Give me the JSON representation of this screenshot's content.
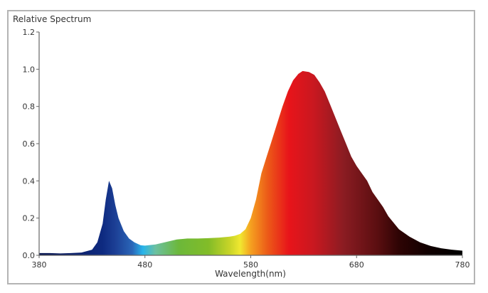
{
  "chart_data": {
    "type": "area",
    "title": "Relative Spectrum",
    "xlabel": "Wavelength(nm)",
    "ylabel": "Relative Spectrum",
    "xlim": [
      380,
      780
    ],
    "ylim": [
      0,
      1.2
    ],
    "xticks": [
      380,
      480,
      580,
      680,
      780
    ],
    "yticks": [
      "0.0",
      "0.2",
      "0.4",
      "0.6",
      "0.8",
      "1.0",
      "1.2"
    ],
    "grid": false,
    "legend": "none",
    "series": [
      {
        "name": "Relative Spectrum",
        "x": [
          380,
          390,
          400,
          410,
          420,
          430,
          435,
          440,
          443,
          446,
          449,
          452,
          455,
          460,
          465,
          470,
          476,
          480,
          490,
          500,
          510,
          520,
          530,
          540,
          550,
          560,
          565,
          570,
          575,
          580,
          585,
          590,
          595,
          600,
          605,
          610,
          615,
          620,
          625,
          629,
          635,
          640,
          645,
          650,
          655,
          660,
          665,
          670,
          675,
          680,
          685,
          690,
          695,
          700,
          705,
          710,
          720,
          730,
          740,
          750,
          760,
          770,
          780
        ],
        "y": [
          0.012,
          0.012,
          0.01,
          0.012,
          0.015,
          0.03,
          0.07,
          0.17,
          0.3,
          0.4,
          0.36,
          0.27,
          0.2,
          0.13,
          0.09,
          0.07,
          0.054,
          0.052,
          0.058,
          0.072,
          0.085,
          0.09,
          0.09,
          0.092,
          0.095,
          0.1,
          0.105,
          0.115,
          0.14,
          0.2,
          0.3,
          0.44,
          0.53,
          0.62,
          0.71,
          0.8,
          0.88,
          0.94,
          0.975,
          0.99,
          0.985,
          0.97,
          0.93,
          0.88,
          0.81,
          0.74,
          0.67,
          0.6,
          0.53,
          0.48,
          0.44,
          0.4,
          0.34,
          0.3,
          0.26,
          0.21,
          0.14,
          0.1,
          0.07,
          0.05,
          0.038,
          0.03,
          0.025
        ]
      }
    ]
  }
}
